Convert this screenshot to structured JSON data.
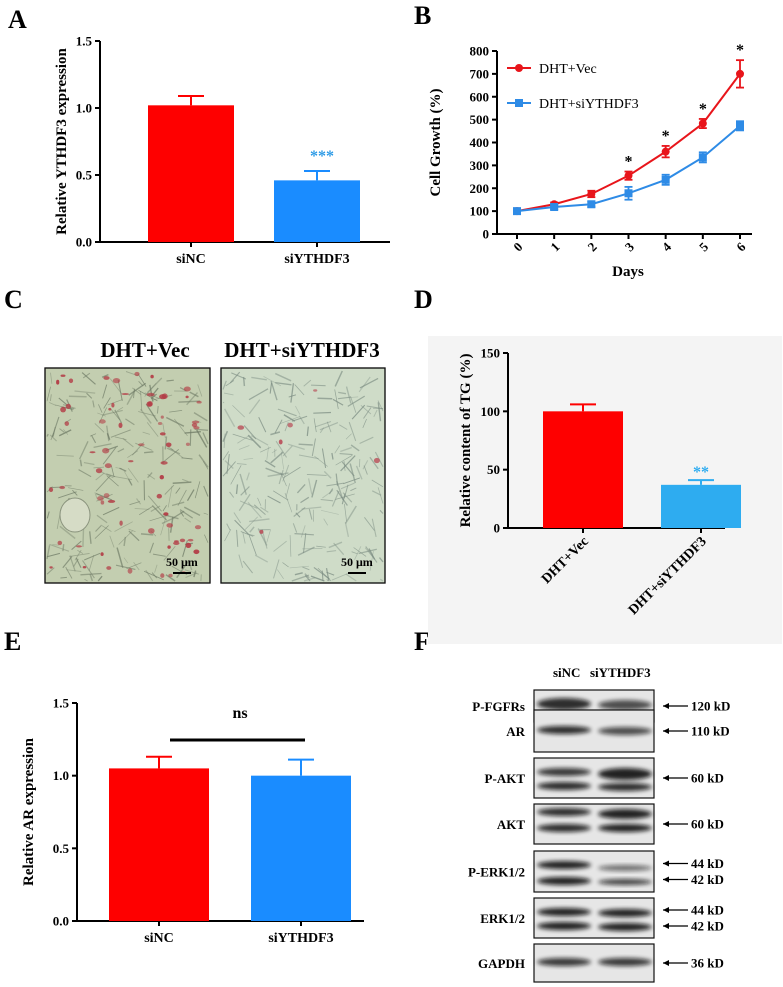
{
  "colors": {
    "red": "#fe0000",
    "blue": "#1a8cff",
    "light_blue": "#2eacf0",
    "line_red": "#e8151b",
    "line_blue": "#2e8be6",
    "star_blue": "#2e9be6"
  },
  "panels": {
    "a": "A",
    "b": "B",
    "c": "C",
    "d": "D",
    "e": "E",
    "f": "F"
  },
  "chart_data": [
    {
      "id": "A",
      "type": "bar",
      "ylabel": "Relative YTHDF3 expression",
      "categories": [
        "siNC",
        "siYTHDF3"
      ],
      "values": [
        1.02,
        0.46
      ],
      "errors": [
        0.07,
        0.07
      ],
      "ylim": [
        0,
        1.5
      ],
      "yticks": [
        "0.0",
        "0.5",
        "1.0",
        "1.5"
      ],
      "annotation": "***"
    },
    {
      "id": "B",
      "type": "line",
      "ylabel": "Cell Growth (%)",
      "xlabel": "Days",
      "x": [
        "0",
        "1",
        "2",
        "3",
        "4",
        "5",
        "6"
      ],
      "ylim": [
        0,
        800
      ],
      "yticks": [
        "0",
        "100",
        "200",
        "300",
        "400",
        "500",
        "600",
        "700",
        "800"
      ],
      "series": [
        {
          "name": "DHT+Vec",
          "values": [
            100,
            130,
            175,
            255,
            360,
            483,
            700
          ],
          "errors": [
            8,
            8,
            14,
            18,
            25,
            20,
            60
          ]
        },
        {
          "name": "DHT+siYTHDF3",
          "values": [
            100,
            118,
            130,
            178,
            237,
            335,
            473
          ],
          "errors": [
            8,
            10,
            12,
            28,
            22,
            22,
            20
          ]
        }
      ],
      "annotations": [
        "*",
        "*",
        "*",
        "*"
      ]
    },
    {
      "id": "D",
      "type": "bar",
      "ylabel": "Relative content of TG (%)",
      "categories": [
        "DHT+Vec",
        "DHT+siYTHDF3"
      ],
      "values": [
        100,
        37
      ],
      "errors": [
        6,
        4
      ],
      "ylim": [
        0,
        150
      ],
      "yticks": [
        "0",
        "50",
        "100",
        "150"
      ],
      "annotation": "**"
    },
    {
      "id": "E",
      "type": "bar",
      "ylabel": "Relative AR expression",
      "categories": [
        "siNC",
        "siYTHDF3"
      ],
      "values": [
        1.05,
        1.0
      ],
      "errors": [
        0.08,
        0.11
      ],
      "ylim": [
        0,
        1.5
      ],
      "yticks": [
        "0.0",
        "0.5",
        "1.0",
        "1.5"
      ],
      "annotation": "ns"
    }
  ],
  "panel_c": {
    "left_title": "DHT+Vec",
    "right_title": "DHT+siYTHDF3",
    "scale_left": "50 μm",
    "scale_right": "50 μm"
  },
  "panel_f": {
    "columns": [
      "siNC",
      "siYTHDF3"
    ],
    "rows": [
      {
        "label": "P-FGFRs",
        "kd": [
          "120 kD"
        ]
      },
      {
        "label": "AR",
        "kd": [
          "110 kD"
        ]
      },
      {
        "label": "P-AKT",
        "kd": [
          "60 kD"
        ]
      },
      {
        "label": "AKT",
        "kd": [
          "60 kD"
        ]
      },
      {
        "label": "P-ERK1/2",
        "kd": [
          "44 kD",
          "42 kD"
        ]
      },
      {
        "label": "ERK1/2",
        "kd": [
          "44 kD",
          "42 kD"
        ]
      },
      {
        "label": "GAPDH",
        "kd": [
          "36 kD"
        ]
      }
    ]
  }
}
